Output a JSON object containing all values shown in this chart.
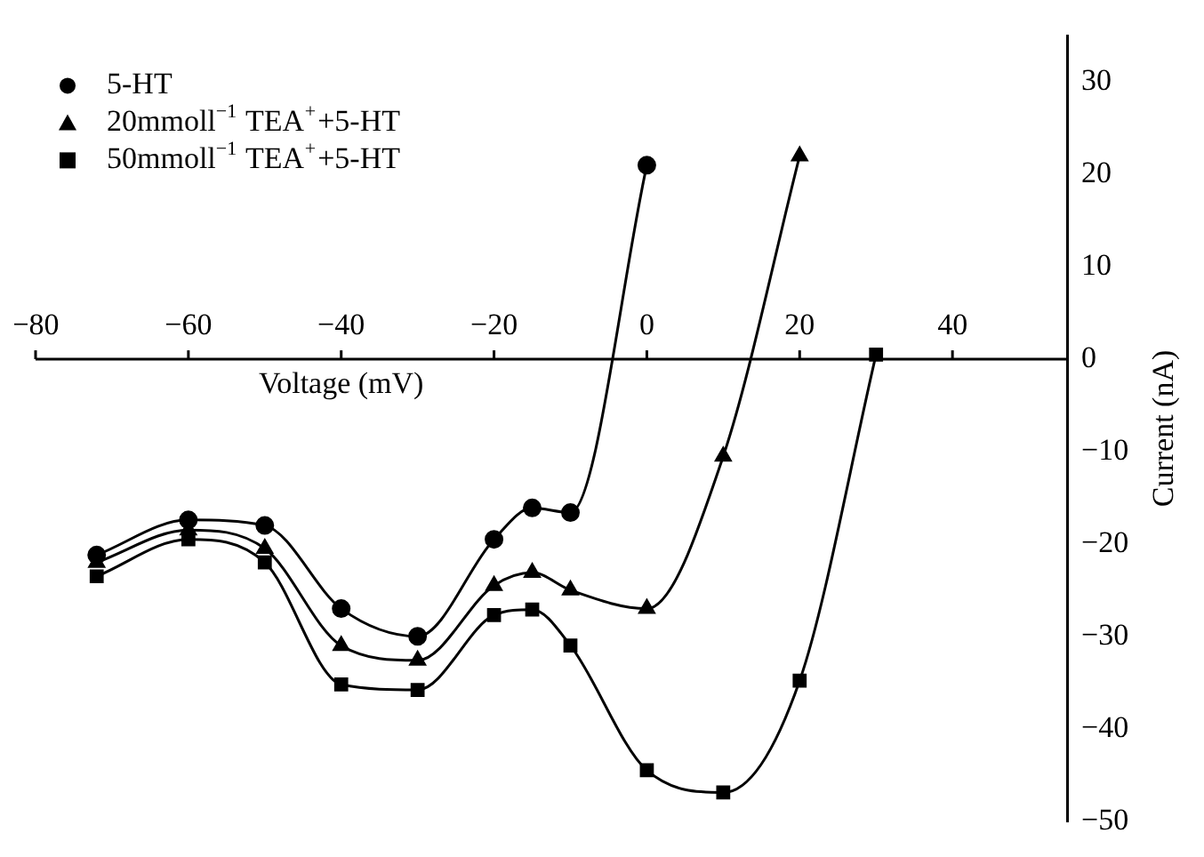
{
  "chart_data": {
    "type": "line",
    "xlabel": "Voltage (mV)",
    "ylabel": "Current (nA)",
    "xlim": [
      -80,
      55
    ],
    "xticks": [
      -80,
      -60,
      -40,
      -20,
      0,
      20,
      40
    ],
    "ylim": [
      -50,
      35
    ],
    "yticks": [
      -50,
      -40,
      -30,
      -20,
      -10,
      0,
      10,
      20,
      30
    ],
    "grid": false,
    "legend": "top left",
    "series": [
      {
        "name": "5-HT",
        "color": "#000000",
        "marker": "circle",
        "x": [
          -72,
          -60,
          -50,
          -40,
          -30,
          -20,
          -15,
          -10,
          0
        ],
        "values": [
          -21.2,
          -17.4,
          -18,
          -27,
          -30,
          -19.5,
          -16.1,
          -16.6,
          21
        ]
      },
      {
        "name": "20mmoll$^{−1}$ TEA$^{+}$+5-HT",
        "color": "#000000",
        "marker": "triangle",
        "x": [
          -72,
          -60,
          -50,
          -40,
          -30,
          -20,
          -15,
          -10,
          0,
          10,
          20
        ],
        "values": [
          -22,
          -18.5,
          -20.5,
          -31,
          -32.6,
          -24.5,
          -23.1,
          -25,
          -27,
          -10.5,
          22
        ]
      },
      {
        "name": "50mmoll$^{−1}$ TEA$^{+}$+5-HT",
        "color": "#000000",
        "marker": "square",
        "x": [
          -72,
          -60,
          -50,
          -40,
          -30,
          -20,
          -15,
          -10,
          0,
          10,
          20,
          30
        ],
        "values": [
          -23.5,
          -19.5,
          -22,
          -35.2,
          -35.8,
          -27.7,
          -27.1,
          -31,
          -44.5,
          -46.9,
          -34.8,
          0.5
        ]
      }
    ]
  }
}
